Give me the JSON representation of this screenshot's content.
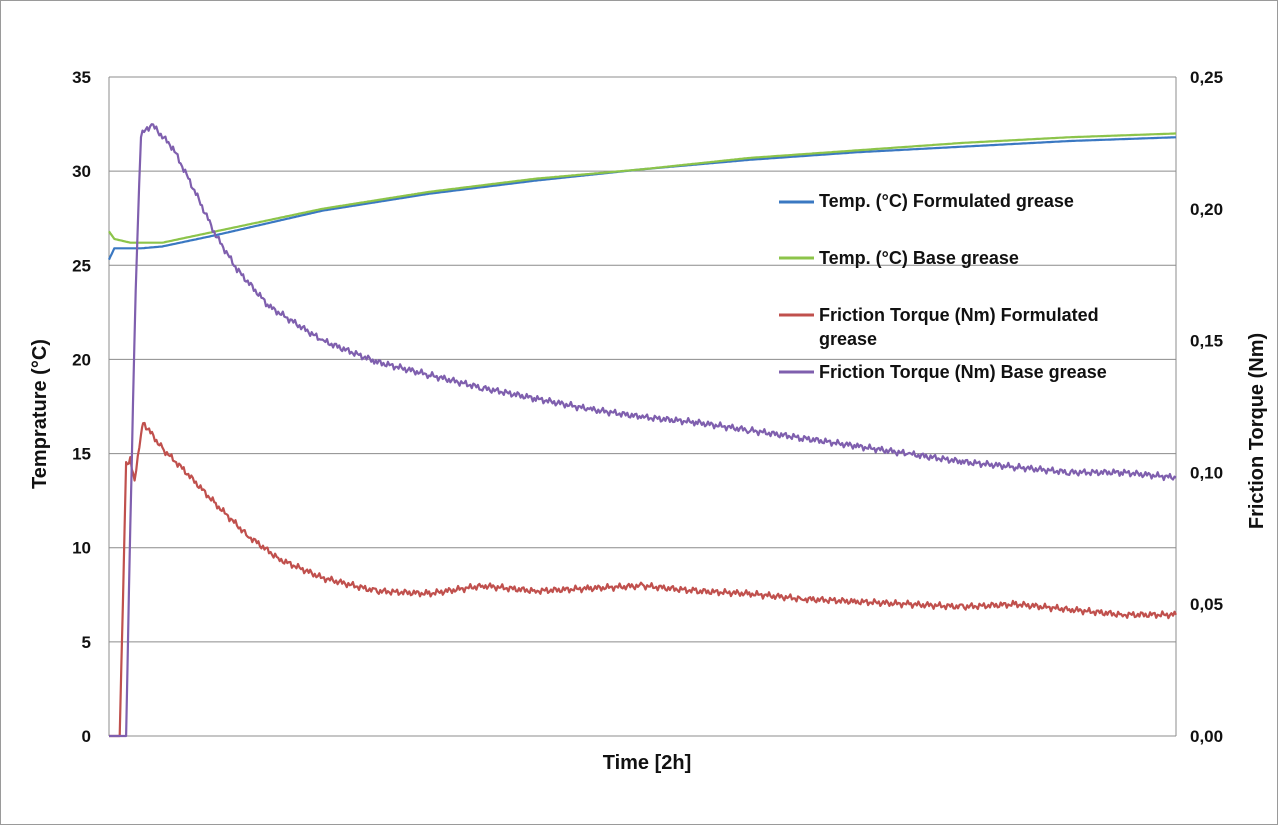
{
  "chart_data": {
    "type": "line",
    "title": "",
    "xlabel": "Time [2h]",
    "ylabel": "Temprature (°C)",
    "y2label": "Friction Torque (Nm)",
    "x_range": [
      0,
      1
    ],
    "ylim": [
      0,
      35
    ],
    "y2lim": [
      0,
      0.25
    ],
    "y_ticks": [
      "0",
      "5",
      "10",
      "15",
      "20",
      "25",
      "30",
      "35"
    ],
    "y2_ticks": [
      "0,00",
      "0,05",
      "0,10",
      "0,15",
      "0,20",
      "0,25"
    ],
    "grid": "horizontal",
    "legend_position": "right",
    "series": [
      {
        "name": "Temp. (°C) Formulated grease",
        "axis": "left",
        "color": "#3a78c2",
        "x": [
          0,
          0.005,
          0.03,
          0.05,
          0.1,
          0.2,
          0.3,
          0.4,
          0.5,
          0.6,
          0.7,
          0.8,
          0.9,
          1.0
        ],
        "y": [
          25.3,
          25.9,
          25.9,
          26.0,
          26.6,
          27.9,
          28.8,
          29.5,
          30.1,
          30.6,
          31.0,
          31.3,
          31.6,
          31.8
        ]
      },
      {
        "name": "Temp. (°C) Base grease",
        "axis": "left",
        "color": "#8cc44a",
        "x": [
          0,
          0.005,
          0.02,
          0.05,
          0.1,
          0.2,
          0.3,
          0.4,
          0.5,
          0.6,
          0.7,
          0.8,
          0.9,
          1.0
        ],
        "y": [
          26.8,
          26.4,
          26.2,
          26.2,
          26.8,
          28.0,
          28.9,
          29.6,
          30.1,
          30.7,
          31.1,
          31.5,
          31.8,
          32.0
        ]
      },
      {
        "name": "Friction Torque (Nm) Formulated grease",
        "axis": "right",
        "color": "#c0504d",
        "x": [
          0,
          0.01,
          0.016,
          0.02,
          0.024,
          0.03,
          0.032,
          0.05,
          0.07,
          0.1,
          0.13,
          0.16,
          0.2,
          0.25,
          0.3,
          0.35,
          0.4,
          0.45,
          0.5,
          0.55,
          0.6,
          0.65,
          0.7,
          0.75,
          0.8,
          0.85,
          0.9,
          0.95,
          1.0
        ],
        "y": [
          0.0,
          0.0,
          0.103,
          0.105,
          0.097,
          0.115,
          0.119,
          0.109,
          0.101,
          0.088,
          0.076,
          0.067,
          0.06,
          0.055,
          0.054,
          0.057,
          0.055,
          0.056,
          0.057,
          0.055,
          0.054,
          0.052,
          0.051,
          0.05,
          0.049,
          0.05,
          0.048,
          0.046,
          0.046
        ]
      },
      {
        "name": "Friction Torque (Nm) Base grease",
        "axis": "right",
        "color": "#7f5fae",
        "x": [
          0,
          0.01,
          0.016,
          0.02,
          0.025,
          0.03,
          0.04,
          0.06,
          0.08,
          0.1,
          0.12,
          0.15,
          0.2,
          0.25,
          0.3,
          0.35,
          0.4,
          0.45,
          0.5,
          0.55,
          0.6,
          0.65,
          0.7,
          0.75,
          0.8,
          0.85,
          0.9,
          0.95,
          1.0
        ],
        "y": [
          0.0,
          0.0,
          0.0,
          0.08,
          0.17,
          0.228,
          0.232,
          0.223,
          0.207,
          0.19,
          0.177,
          0.163,
          0.15,
          0.142,
          0.137,
          0.132,
          0.128,
          0.124,
          0.121,
          0.119,
          0.116,
          0.113,
          0.11,
          0.107,
          0.104,
          0.102,
          0.1,
          0.1,
          0.098
        ]
      }
    ]
  }
}
